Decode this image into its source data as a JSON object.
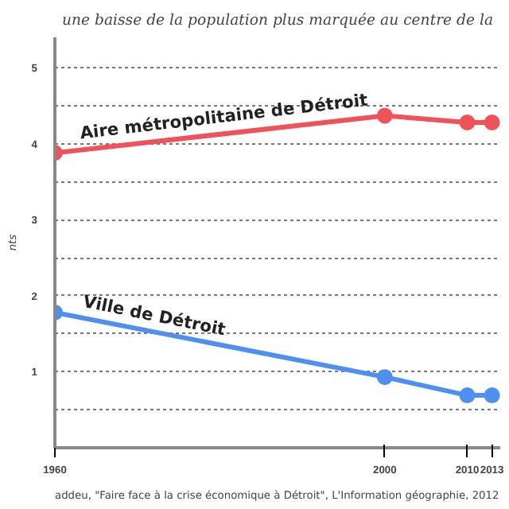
{
  "chart_data": {
    "type": "line",
    "title": "une baisse de la population plus marquée au centre de la",
    "ylabel": "nts",
    "x": [
      1960,
      2000,
      2010,
      2013
    ],
    "series": [
      {
        "name": "Aire métropolitaine de Détroit",
        "color": "#f0525a",
        "values": [
          3.88,
          4.37,
          4.28,
          4.28
        ]
      },
      {
        "name": "Ville de Détroit",
        "color": "#4f8ff0",
        "values": [
          1.78,
          0.93,
          0.69,
          0.69
        ]
      }
    ],
    "xlim": [
      1960,
      2014
    ],
    "ylim": [
      0,
      5.4
    ],
    "xticks": [
      1960,
      2000,
      2010,
      2013
    ],
    "yticks": [
      {
        "value": 0.5,
        "label": null
      },
      1,
      {
        "value": 1.5,
        "label": null
      },
      2,
      {
        "value": 2.5,
        "label": null
      },
      3,
      {
        "value": 3.5,
        "label": null
      },
      4,
      {
        "value": 4.5,
        "label": null
      },
      5
    ],
    "grid": "y",
    "marker": "circle",
    "line_style": "solid",
    "annotations": [
      "addeu, \"Faire face à la crise économique à Détroit\", L'Information géographie, 2012"
    ]
  }
}
